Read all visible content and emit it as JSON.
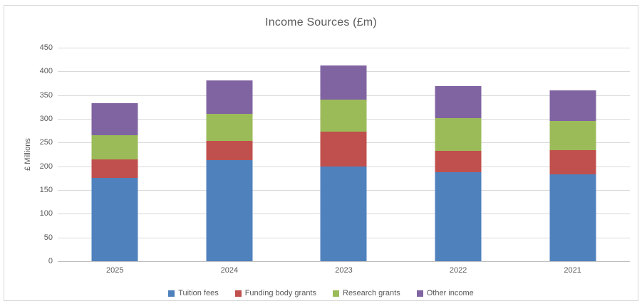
{
  "chart_data": {
    "type": "bar",
    "stacked": true,
    "title": "Income Sources (£m)",
    "xlabel": "",
    "ylabel": "£ Millions",
    "categories": [
      "2025",
      "2024",
      "2023",
      "2022",
      "2021"
    ],
    "series": [
      {
        "name": "Tuition fees",
        "color": "#4F81BD",
        "values": [
          176,
          213,
          199,
          188,
          183
        ]
      },
      {
        "name": "Funding body grants",
        "color": "#C0504D",
        "values": [
          39,
          41,
          74,
          44,
          51
        ]
      },
      {
        "name": "Research grants",
        "color": "#9BBB59",
        "values": [
          51,
          56,
          67,
          70,
          61
        ]
      },
      {
        "name": "Other income",
        "color": "#8064A2",
        "values": [
          67,
          71,
          73,
          67,
          65
        ]
      }
    ],
    "totals": [
      333,
      381,
      413,
      369,
      360
    ],
    "ylim": [
      0,
      450
    ],
    "yticks": [
      0,
      50,
      100,
      150,
      200,
      250,
      300,
      350,
      400,
      450
    ],
    "grid": true,
    "legend_position": "bottom"
  },
  "colors": {
    "text": "#595959",
    "gridline": "#D9D9D9",
    "axis_line": "#BFBFBF",
    "frame_border": "#D7D7D7",
    "background": "#FFFFFF"
  }
}
